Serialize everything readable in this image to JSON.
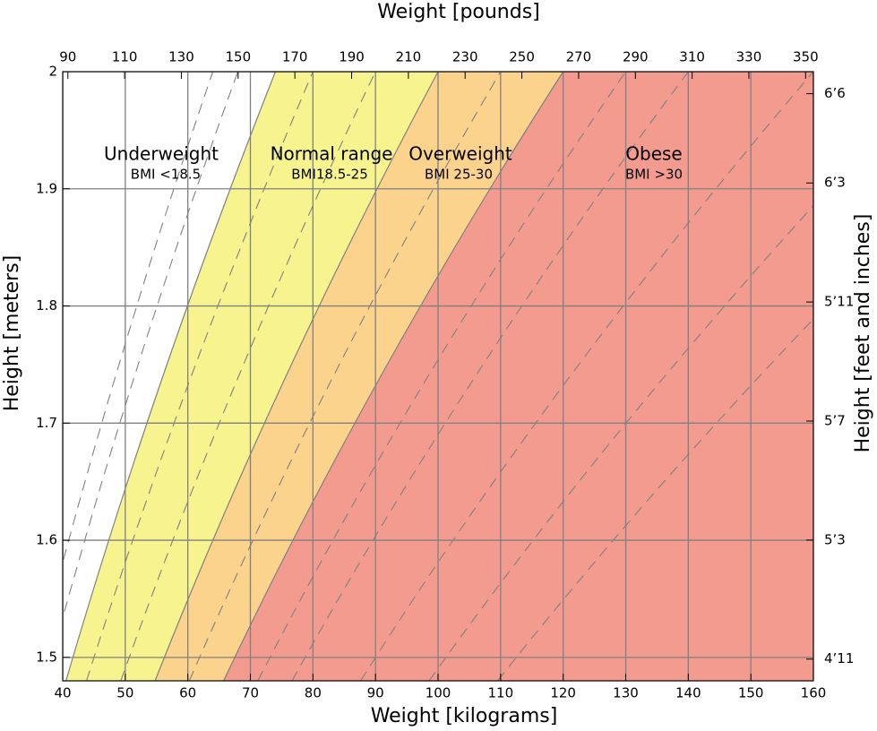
{
  "chart_data": {
    "type": "bmi-region",
    "xlabel": "Weight [kilograms]",
    "x2label": "Weight [pounds]",
    "ylabel": "Height [meters]",
    "y2label": "Height [feet and inches]",
    "xlim": [
      40,
      160
    ],
    "xticks": [
      40,
      50,
      60,
      70,
      80,
      90,
      100,
      110,
      120,
      130,
      140,
      150,
      160
    ],
    "x2lim": [
      88.18,
      352.74
    ],
    "x2ticks": [
      90,
      110,
      130,
      150,
      170,
      190,
      210,
      230,
      250,
      270,
      290,
      310,
      330,
      350
    ],
    "ylim": [
      1.48,
      2.0
    ],
    "yticks": [
      1.5,
      1.6,
      1.7,
      1.8,
      1.9,
      2
    ],
    "y2lim": [
      58.27,
      78.74
    ],
    "y2ticks": [
      {
        "value": 78,
        "label": "6’6"
      },
      {
        "value": 75,
        "label": "6’3"
      },
      {
        "value": 71,
        "label": "5’11"
      },
      {
        "value": 67,
        "label": "5’7"
      },
      {
        "value": 63,
        "label": "5’3"
      },
      {
        "value": 59,
        "label": "4’11"
      }
    ],
    "grid": true,
    "boundaries": [
      18.5,
      25,
      30
    ],
    "regions": [
      {
        "name": "Underweight",
        "label": "BMI <18.5",
        "color": "#ffffff"
      },
      {
        "name": "Normal range",
        "label": "BMI18.5-25",
        "color": "#f7f48f"
      },
      {
        "name": "Overweight",
        "label": "BMI 25-30",
        "color": "#fbd38d"
      },
      {
        "name": "Obese",
        "label": "BMI >30",
        "color": "#f39b8f"
      }
    ],
    "bmi_lines": [
      16,
      17,
      20,
      22.5,
      27.5,
      32.5,
      35,
      40,
      45,
      50
    ]
  }
}
